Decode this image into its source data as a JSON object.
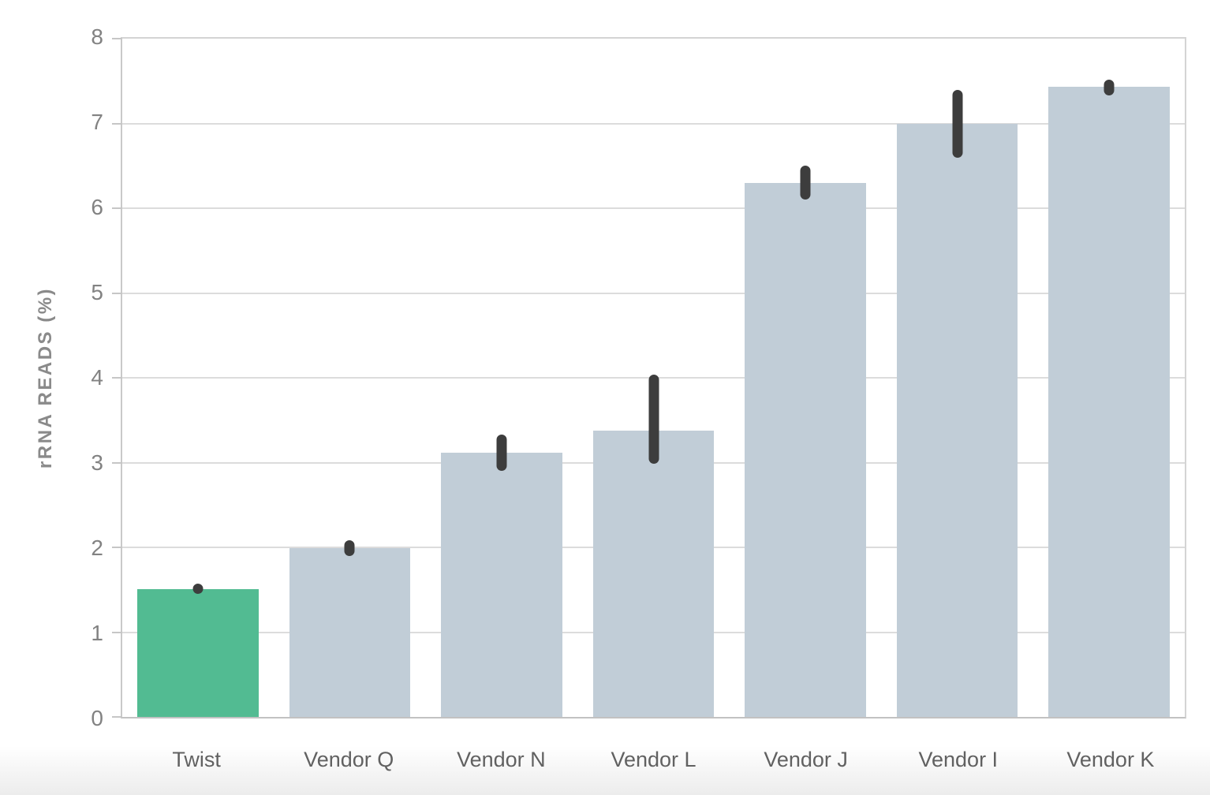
{
  "chart_data": {
    "type": "bar",
    "title": "",
    "xlabel": "",
    "ylabel": "rRNA READS (%)",
    "ylim": [
      0,
      8
    ],
    "yticks": [
      0,
      1,
      2,
      3,
      4,
      5,
      6,
      7,
      8
    ],
    "grid": "horizontal",
    "legend": "none",
    "categories": [
      "Twist",
      "Vendor Q",
      "Vendor N",
      "Vendor L",
      "Vendor J",
      "Vendor I",
      "Vendor K"
    ],
    "values": [
      1.51,
      1.99,
      3.12,
      3.38,
      6.3,
      7.0,
      7.43
    ],
    "error_low": [
      1.45,
      1.9,
      2.9,
      2.99,
      6.1,
      6.6,
      7.33
    ],
    "error_high": [
      1.57,
      2.08,
      3.33,
      4.04,
      6.5,
      7.4,
      7.52
    ],
    "bar_colors": [
      "#52bb92",
      "#c1cdd7",
      "#c1cdd7",
      "#c1cdd7",
      "#c1cdd7",
      "#c1cdd7",
      "#c1cdd7"
    ],
    "highlight_category": "Twist"
  },
  "colors": {
    "highlight_bar": "#52bb92",
    "default_bar": "#c1cdd7",
    "error_bar": "#3d3d3d",
    "gridline": "#dcdcdc",
    "axis_border": "#c9c9c9",
    "tick_label": "#828282",
    "axis_title": "#8a8a8a",
    "x_label": "#616161"
  }
}
